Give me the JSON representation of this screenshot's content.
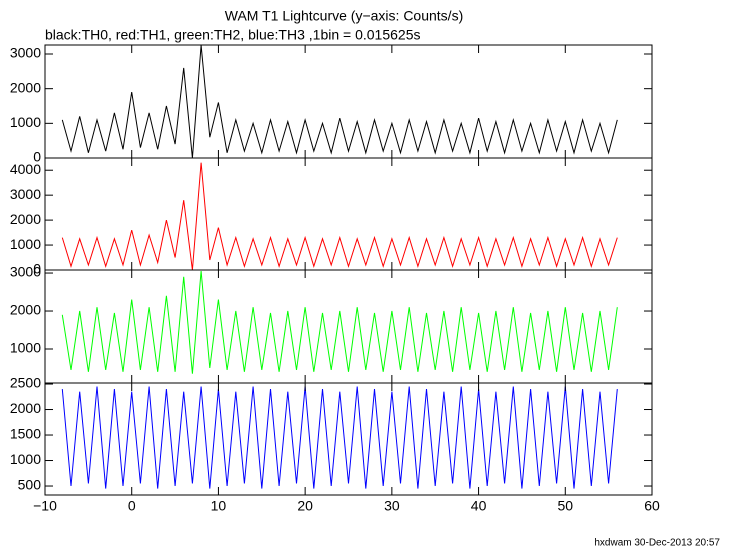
{
  "chart_data": [
    {
      "type": "line",
      "title": "WAM T1 Lightcurve (y−axis: Counts/s)",
      "subtitle": "black:TH0, red:TH1, green:TH2, blue:TH3 ,1bin = 0.015625s",
      "color": "#000000",
      "x": [
        -8,
        -7,
        -6,
        -5,
        -4,
        -3,
        -2,
        -1,
        0,
        1,
        2,
        3,
        4,
        5,
        6,
        7,
        8,
        9,
        10,
        11,
        12,
        13,
        14,
        15,
        16,
        17,
        18,
        19,
        20,
        21,
        22,
        23,
        24,
        25,
        26,
        27,
        28,
        29,
        30,
        31,
        32,
        33,
        34,
        35,
        36,
        37,
        38,
        39,
        40,
        41,
        42,
        43,
        44,
        45,
        46,
        47,
        48,
        49,
        50,
        51,
        52,
        53,
        54,
        55,
        56
      ],
      "values": [
        1100,
        200,
        1200,
        150,
        1100,
        200,
        1300,
        250,
        1900,
        300,
        1300,
        250,
        1500,
        400,
        2600,
        0,
        3250,
        600,
        1600,
        150,
        1100,
        200,
        1000,
        150,
        1100,
        200,
        1050,
        150,
        1100,
        200,
        1000,
        150,
        1150,
        200,
        1050,
        150,
        1100,
        200,
        1000,
        150,
        1100,
        200,
        1050,
        150,
        1100,
        200,
        1000,
        150,
        1150,
        200,
        1050,
        150,
        1100,
        200,
        1000,
        150,
        1100,
        200,
        1050,
        150,
        1100,
        200,
        1000,
        150,
        1100
      ],
      "ylim": [
        0,
        3260
      ],
      "yticks": [
        0,
        1000,
        2000,
        3000
      ]
    },
    {
      "type": "line",
      "color": "#ff0000",
      "x": [
        -8,
        -7,
        -6,
        -5,
        -4,
        -3,
        -2,
        -1,
        0,
        1,
        2,
        3,
        4,
        5,
        6,
        7,
        8,
        9,
        10,
        11,
        12,
        13,
        14,
        15,
        16,
        17,
        18,
        19,
        20,
        21,
        22,
        23,
        24,
        25,
        26,
        27,
        28,
        29,
        30,
        31,
        32,
        33,
        34,
        35,
        36,
        37,
        38,
        39,
        40,
        41,
        42,
        43,
        44,
        45,
        46,
        47,
        48,
        49,
        50,
        51,
        52,
        53,
        54,
        55,
        56
      ],
      "values": [
        1300,
        150,
        1250,
        200,
        1300,
        150,
        1250,
        200,
        1600,
        200,
        1400,
        300,
        2000,
        500,
        2800,
        0,
        4300,
        400,
        1700,
        200,
        1300,
        150,
        1250,
        200,
        1300,
        150,
        1250,
        200,
        1300,
        150,
        1250,
        200,
        1300,
        150,
        1250,
        200,
        1300,
        150,
        1250,
        200,
        1300,
        150,
        1250,
        200,
        1300,
        150,
        1250,
        200,
        1300,
        150,
        1250,
        200,
        1300,
        150,
        1250,
        200,
        1300,
        150,
        1250,
        200,
        1300,
        150,
        1250,
        200,
        1300
      ],
      "ylim": [
        0,
        4490
      ],
      "yticks": [
        0,
        1000,
        2000,
        3000,
        4000
      ]
    },
    {
      "type": "line",
      "color": "#00ff00",
      "x": [
        -8,
        -7,
        -6,
        -5,
        -4,
        -3,
        -2,
        -1,
        0,
        1,
        2,
        3,
        4,
        5,
        6,
        7,
        8,
        9,
        10,
        11,
        12,
        13,
        14,
        15,
        16,
        17,
        18,
        19,
        20,
        21,
        22,
        23,
        24,
        25,
        26,
        27,
        28,
        29,
        30,
        31,
        32,
        33,
        34,
        35,
        36,
        37,
        38,
        39,
        40,
        41,
        42,
        43,
        44,
        45,
        46,
        47,
        48,
        49,
        50,
        51,
        52,
        53,
        54,
        55,
        56
      ],
      "values": [
        1900,
        450,
        2000,
        400,
        2100,
        450,
        1950,
        400,
        2300,
        450,
        2100,
        400,
        2400,
        400,
        2900,
        350,
        3050,
        500,
        2300,
        450,
        2000,
        400,
        2100,
        450,
        1950,
        400,
        2000,
        450,
        2100,
        400,
        1950,
        450,
        2000,
        400,
        2100,
        450,
        1950,
        400,
        2000,
        450,
        2100,
        400,
        1950,
        450,
        2000,
        400,
        2100,
        450,
        1950,
        400,
        2000,
        450,
        2100,
        400,
        1950,
        450,
        2000,
        400,
        2100,
        450,
        1950,
        400,
        2000,
        450,
        2100
      ],
      "ylim": [
        105,
        3080
      ],
      "yticks": [
        1000,
        2000,
        3000
      ]
    },
    {
      "type": "line",
      "color": "#0000ff",
      "annotation": "hxdwam 30-Dec-2013 20:57",
      "x": [
        -8,
        -7,
        -6,
        -5,
        -4,
        -3,
        -2,
        -1,
        0,
        1,
        2,
        3,
        4,
        5,
        6,
        7,
        8,
        9,
        10,
        11,
        12,
        13,
        14,
        15,
        16,
        17,
        18,
        19,
        20,
        21,
        22,
        23,
        24,
        25,
        26,
        27,
        28,
        29,
        30,
        31,
        32,
        33,
        34,
        35,
        36,
        37,
        38,
        39,
        40,
        41,
        42,
        43,
        44,
        45,
        46,
        47,
        48,
        49,
        50,
        51,
        52,
        53,
        54,
        55,
        56
      ],
      "values": [
        2400,
        500,
        2350,
        550,
        2450,
        450,
        2400,
        500,
        2350,
        550,
        2450,
        450,
        2400,
        500,
        2350,
        550,
        2450,
        450,
        2400,
        500,
        2350,
        550,
        2450,
        450,
        2400,
        500,
        2350,
        550,
        2450,
        450,
        2400,
        500,
        2350,
        550,
        2450,
        450,
        2400,
        500,
        2350,
        550,
        2450,
        450,
        2400,
        500,
        2350,
        550,
        2450,
        450,
        2400,
        500,
        2350,
        550,
        2450,
        450,
        2400,
        500,
        2350,
        550,
        2450,
        450,
        2400,
        500,
        2350,
        550,
        2400
      ],
      "ylim": [
        324,
        2520
      ],
      "yticks": [
        500,
        1000,
        1500,
        2000,
        2500
      ],
      "xlim": [
        -10,
        60
      ],
      "xticks": [
        {
          "value": -10,
          "label": "−10"
        },
        0,
        10,
        20,
        30,
        40,
        50,
        60
      ]
    }
  ]
}
